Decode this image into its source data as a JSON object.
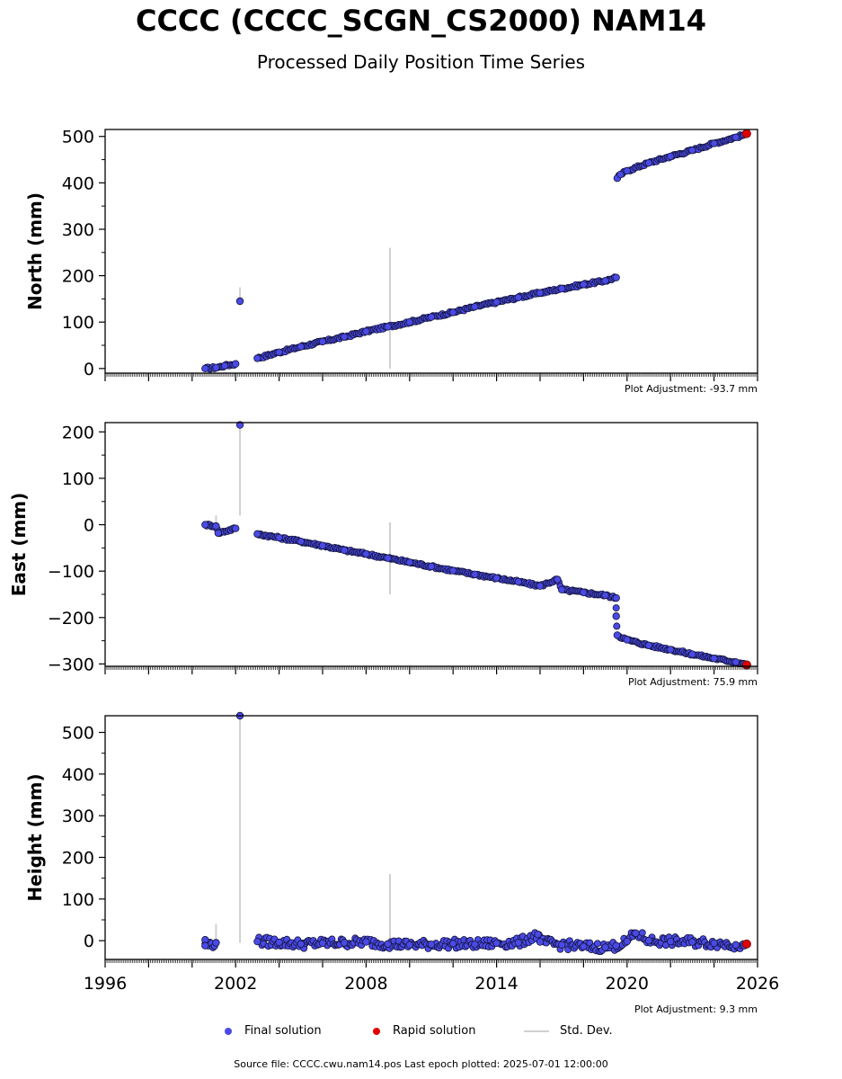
{
  "title": "CCCC (CCCC_SCGN_CS2000) NAM14",
  "subtitle": "Processed Daily Position Time Series",
  "legend": {
    "final": "Final solution",
    "rapid": "Rapid solution",
    "std": "Std. Dev."
  },
  "footer": "Source file: CCCC.cwu.nam14.pos  Last epoch plotted: 2025-07-01 12:00:00",
  "colors": {
    "final": "#4a4ae6",
    "final_edge": "#14143c",
    "rapid": "#e00000",
    "std": "#d0d0d0"
  },
  "chart_data": [
    {
      "type": "scatter",
      "ylabel": "North (mm)",
      "adjustment": "Plot Adjustment: -93.7 mm",
      "xlim": [
        1996,
        2026
      ],
      "ylim": [
        -10,
        515
      ],
      "yticks": [
        0,
        100,
        200,
        300,
        400,
        500
      ],
      "series": [
        {
          "name": "Final solution",
          "points": [
            [
              2000.6,
              0
            ],
            [
              2001.1,
              2
            ],
            [
              2001.5,
              6
            ],
            [
              2002.0,
              10
            ],
            [
              2002.2,
              145
            ],
            [
              2003.0,
              22
            ],
            [
              2004.0,
              35
            ],
            [
              2005.0,
              47
            ],
            [
              2006.0,
              58
            ],
            [
              2007.0,
              68
            ],
            [
              2008.0,
              80
            ],
            [
              2009.0,
              90
            ],
            [
              2010.0,
              100
            ],
            [
              2011.0,
              111
            ],
            [
              2012.0,
              121
            ],
            [
              2013.0,
              133
            ],
            [
              2014.0,
              143
            ],
            [
              2015.0,
              153
            ],
            [
              2016.0,
              163
            ],
            [
              2017.0,
              172
            ],
            [
              2018.0,
              181
            ],
            [
              2019.0,
              189
            ],
            [
              2019.5,
              196
            ],
            [
              2019.55,
              410
            ],
            [
              2019.7,
              418
            ],
            [
              2020.0,
              426
            ],
            [
              2021.0,
              443
            ],
            [
              2022.0,
              457
            ],
            [
              2023.0,
              470
            ],
            [
              2024.0,
              485
            ],
            [
              2025.0,
              498
            ],
            [
              2025.4,
              504
            ]
          ]
        },
        {
          "name": "Rapid solution",
          "points": [
            [
              2025.5,
              506
            ]
          ]
        }
      ],
      "stddev": [
        [
          2002.2,
          145,
          175
        ],
        [
          2009.1,
          0,
          260
        ]
      ]
    },
    {
      "type": "scatter",
      "ylabel": "East (mm)",
      "adjustment": "Plot Adjustment: 75.9 mm",
      "xlim": [
        1996,
        2026
      ],
      "ylim": [
        -305,
        220
      ],
      "yticks": [
        -300,
        -200,
        -100,
        0,
        100,
        200
      ],
      "series": [
        {
          "name": "Final solution",
          "points": [
            [
              2000.6,
              0
            ],
            [
              2001.1,
              -3
            ],
            [
              2001.2,
              -18
            ],
            [
              2002.0,
              -8
            ],
            [
              2002.2,
              215
            ],
            [
              2003.0,
              -20
            ],
            [
              2004.0,
              -28
            ],
            [
              2005.0,
              -36
            ],
            [
              2006.0,
              -45
            ],
            [
              2007.0,
              -55
            ],
            [
              2008.0,
              -63
            ],
            [
              2009.0,
              -72
            ],
            [
              2010.0,
              -81
            ],
            [
              2011.0,
              -90
            ],
            [
              2012.0,
              -99
            ],
            [
              2013.0,
              -107
            ],
            [
              2014.0,
              -115
            ],
            [
              2015.0,
              -123
            ],
            [
              2016.0,
              -132
            ],
            [
              2016.8,
              -118
            ],
            [
              2017.0,
              -140
            ],
            [
              2018.0,
              -146
            ],
            [
              2019.0,
              -152
            ],
            [
              2019.5,
              -158
            ],
            [
              2019.5,
              -197
            ],
            [
              2019.55,
              -238
            ],
            [
              2020.0,
              -248
            ],
            [
              2021.0,
              -260
            ],
            [
              2022.0,
              -269
            ],
            [
              2023.0,
              -279
            ],
            [
              2024.0,
              -288
            ],
            [
              2025.0,
              -296
            ],
            [
              2025.4,
              -300
            ]
          ]
        },
        {
          "name": "Rapid solution",
          "points": [
            [
              2025.5,
              -302
            ]
          ]
        }
      ],
      "stddev": [
        [
          2002.2,
          20,
          210
        ],
        [
          2009.1,
          -150,
          5
        ],
        [
          2001.1,
          -5,
          20
        ]
      ]
    },
    {
      "type": "scatter",
      "ylabel": "Height (mm)",
      "adjustment": "Plot Adjustment: 9.3 mm",
      "xlim": [
        1996,
        2026
      ],
      "ylim": [
        -45,
        540
      ],
      "yticks": [
        0,
        100,
        200,
        300,
        400,
        500
      ],
      "xticks": [
        1996,
        2002,
        2008,
        2014,
        2020,
        2026
      ],
      "series": [
        {
          "name": "Final solution",
          "points": [
            [
              2000.6,
              2
            ],
            [
              2000.6,
              -12
            ],
            [
              2001.1,
              -5
            ],
            [
              2002.2,
              540
            ],
            [
              2003.0,
              -2
            ],
            [
              2004.0,
              -4
            ],
            [
              2005.0,
              -8
            ],
            [
              2006.0,
              -6
            ],
            [
              2007.0,
              -5
            ],
            [
              2008.0,
              -3
            ],
            [
              2009.0,
              -8
            ],
            [
              2010.0,
              -10
            ],
            [
              2011.0,
              -9
            ],
            [
              2012.0,
              -7
            ],
            [
              2013.0,
              -9
            ],
            [
              2014.0,
              -6
            ],
            [
              2015.0,
              -5
            ],
            [
              2015.9,
              15
            ],
            [
              2016.0,
              -3
            ],
            [
              2017.0,
              -10
            ],
            [
              2018.0,
              -14
            ],
            [
              2019.0,
              -16
            ],
            [
              2019.5,
              -12
            ],
            [
              2020.0,
              -2
            ],
            [
              2020.4,
              18
            ],
            [
              2021.0,
              0
            ],
            [
              2022.0,
              -2
            ],
            [
              2023.0,
              -3
            ],
            [
              2024.0,
              -6
            ],
            [
              2025.0,
              -10
            ],
            [
              2025.4,
              -12
            ]
          ]
        },
        {
          "name": "Rapid solution",
          "points": [
            [
              2025.5,
              -8
            ]
          ]
        }
      ],
      "stddev": [
        [
          2002.2,
          -5,
          540
        ],
        [
          2009.1,
          -20,
          160
        ],
        [
          2001.1,
          -10,
          40
        ]
      ]
    }
  ]
}
